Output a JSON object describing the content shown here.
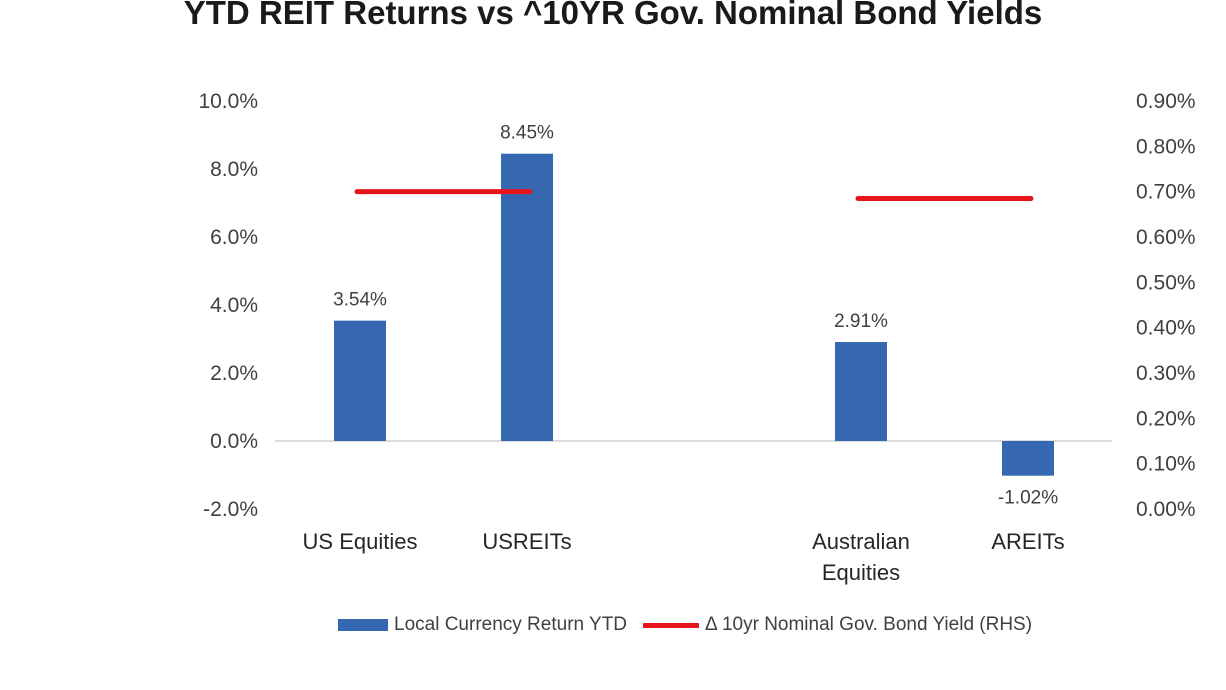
{
  "chart_data": {
    "type": "bar",
    "title": "YTD REIT Returns vs ^10YR Gov. Nominal Bond Yields",
    "categories": [
      "US Equities",
      "USREITs",
      "",
      "Australian Equities",
      "AREITs"
    ],
    "category_lines": [
      [
        "US Equities"
      ],
      [
        "USREITs"
      ],
      [],
      [
        "Australian",
        "Equities"
      ],
      [
        "AREITs"
      ]
    ],
    "series": [
      {
        "name": "Local Currency Return YTD",
        "kind": "bar",
        "axis": "left",
        "color": "#3568b0",
        "values": [
          3.54,
          8.45,
          null,
          2.91,
          -1.02
        ],
        "labels": [
          "3.54%",
          "8.45%",
          "",
          "2.91%",
          "-1.02%"
        ]
      },
      {
        "name": "Δ 10yr Nominal Gov. Bond Yield (RHS)",
        "kind": "line",
        "axis": "right",
        "color": "#e8141b",
        "segments": [
          {
            "from_category": 0,
            "to_category": 1,
            "value": 0.7
          },
          {
            "from_category": 3,
            "to_category": 4,
            "value": 0.685
          }
        ]
      }
    ],
    "y_left": {
      "min": -2,
      "max": 10,
      "step": 2,
      "tick_labels": [
        "-2.0%",
        "0.0%",
        "2.0%",
        "4.0%",
        "6.0%",
        "8.0%",
        "10.0%"
      ]
    },
    "y_right": {
      "min": 0,
      "max": 0.9,
      "step": 0.1,
      "tick_labels": [
        "0.00%",
        "0.10%",
        "0.20%",
        "0.30%",
        "0.40%",
        "0.50%",
        "0.60%",
        "0.70%",
        "0.80%",
        "0.90%"
      ]
    },
    "grid": false,
    "legend_position": "bottom"
  }
}
